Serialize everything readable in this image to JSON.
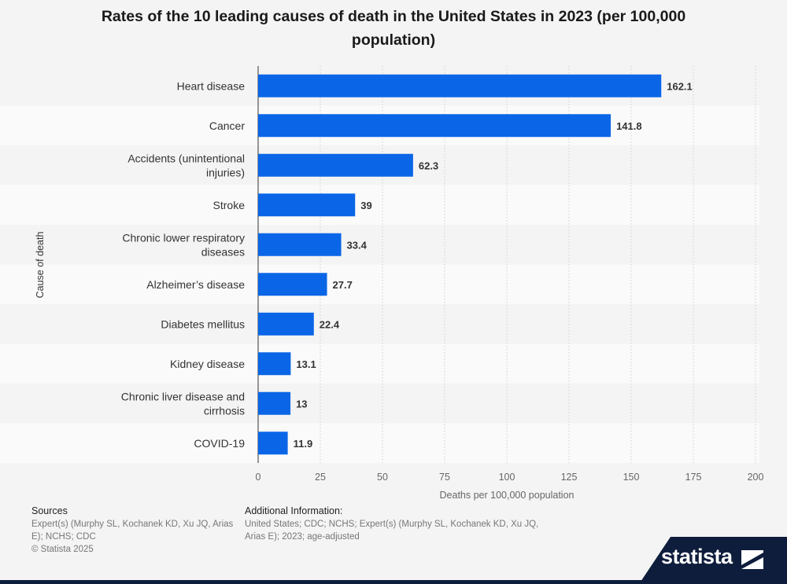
{
  "title": "Rates of the 10 leading causes of death in the United States in 2023 (per 100,000 population)",
  "chart_data": {
    "type": "bar",
    "orientation": "horizontal",
    "title": "Rates of the 10 leading causes of death in the United States in 2023 (per 100,000 population)",
    "categories": [
      "Heart disease",
      "Cancer",
      "Accidents (unintentional injuries)",
      "Stroke",
      "Chronic lower respiratory diseases",
      "Alzheimer’s disease",
      "Diabetes mellitus",
      "Kidney disease",
      "Chronic liver disease and cirrhosis",
      "COVID-19"
    ],
    "values": [
      162.1,
      141.8,
      62.3,
      39,
      33.4,
      27.7,
      22.4,
      13.1,
      13,
      11.9
    ],
    "value_labels": [
      "162.1",
      "141.8",
      "62.3",
      "39",
      "33.4",
      "27.7",
      "22.4",
      "13.1",
      "13",
      "11.9"
    ],
    "xlabel": "Deaths per 100,000 population",
    "ylabel": "Cause of death",
    "xlim": [
      0,
      200
    ],
    "xticks": [
      0,
      25,
      50,
      75,
      100,
      125,
      150,
      175,
      200
    ],
    "grid": "vertical-dotted",
    "bar_color": "#0a66e6"
  },
  "footer": {
    "sources_heading": "Sources",
    "sources_lines": [
      "Expert(s) (Murphy SL, Kochanek KD, Xu JQ, Arias",
      "E); NCHS; CDC",
      "© Statista 2025"
    ],
    "additional_heading": "Additional Information:",
    "additional_lines": [
      "United States; CDC; NCHS; Expert(s) (Murphy SL, Kochanek KD, Xu JQ,",
      "Arias E); 2023; age-adjusted"
    ]
  },
  "brand": {
    "name": "statista"
  }
}
